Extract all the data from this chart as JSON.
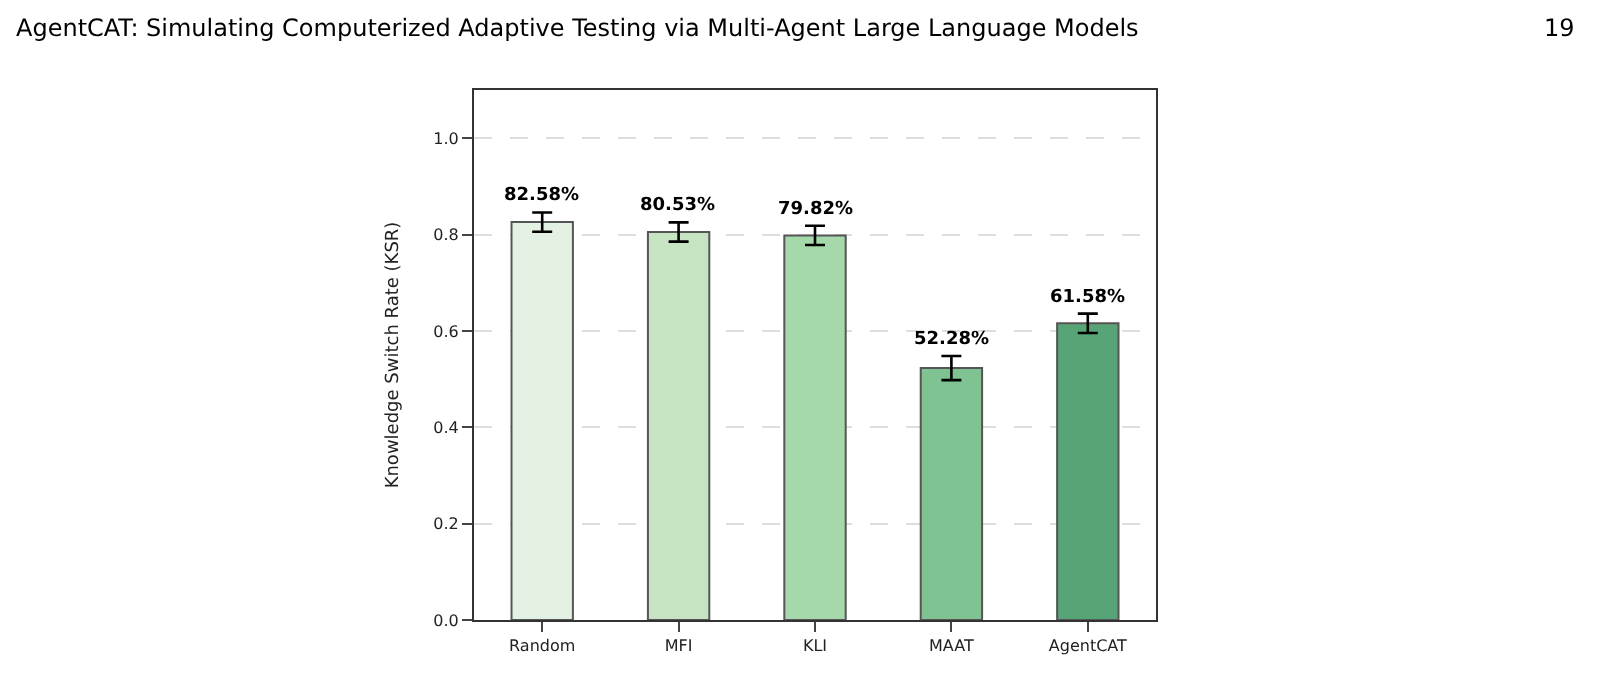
{
  "chart_data": {
    "type": "bar",
    "ylabel": "Knowledge Switch Rate (KSR)",
    "annotations": [
      "AgentCAT: Simulating Computerized Adaptive Testing via Multi-Agent Large Language Models",
      "19"
    ],
    "categories": [
      "Random",
      "MFI",
      "KLI",
      "MAAT",
      "AgentCAT"
    ],
    "values": [
      0.8258,
      0.8053,
      0.7982,
      0.5228,
      0.6158
    ],
    "value_labels": [
      "82.58%",
      "80.53%",
      "79.82%",
      "52.28%",
      "61.58%"
    ],
    "errors": [
      0.02,
      0.02,
      0.02,
      0.025,
      0.02
    ],
    "colors": [
      "#e3f1e3",
      "#c6e4c2",
      "#a5d8ab",
      "#7fc392",
      "#57a477"
    ],
    "ylim": [
      0,
      1.1
    ],
    "yticks": [
      {
        "value": 0,
        "label": "0.0"
      },
      {
        "value": 0.2,
        "label": "0.2"
      },
      {
        "value": 0.4,
        "label": "0.4"
      },
      {
        "value": 0.6,
        "label": "0.6"
      },
      {
        "value": 0.8,
        "label": "0.8"
      },
      {
        "value": 1,
        "label": "1.0"
      }
    ],
    "grid": "y"
  }
}
